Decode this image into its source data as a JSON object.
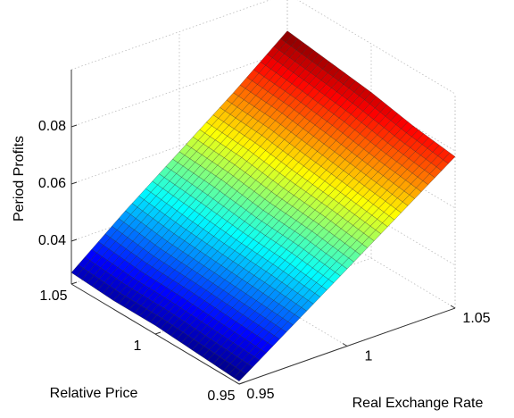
{
  "chart_data": {
    "type": "surface",
    "xlabel": "Real Exchange Rate",
    "ylabel": "Relative Price",
    "zlabel": "Period Profits",
    "x": [
      0.95,
      0.975,
      1,
      1.025,
      1.05
    ],
    "y": [
      0.95,
      0.975,
      1,
      1.025,
      1.05
    ],
    "z": [
      [
        0.026,
        0.027,
        0.028,
        0.028,
        0.029
      ],
      [
        0.039,
        0.04,
        0.041,
        0.042,
        0.044
      ],
      [
        0.052,
        0.054,
        0.055,
        0.057,
        0.058
      ],
      [
        0.065,
        0.067,
        0.069,
        0.071,
        0.072
      ],
      [
        0.078,
        0.08,
        0.083,
        0.085,
        0.087
      ]
    ],
    "xlim": [
      0.95,
      1.05
    ],
    "ylim": [
      0.95,
      1.05
    ],
    "zlim": [
      0.025,
      0.1
    ],
    "xticks": [
      0.95,
      1,
      1.05
    ],
    "yticks": [
      0.95,
      1,
      1.05
    ],
    "zticks": [
      0.04,
      0.06,
      0.08
    ],
    "colormap": "jet",
    "grid": true
  }
}
